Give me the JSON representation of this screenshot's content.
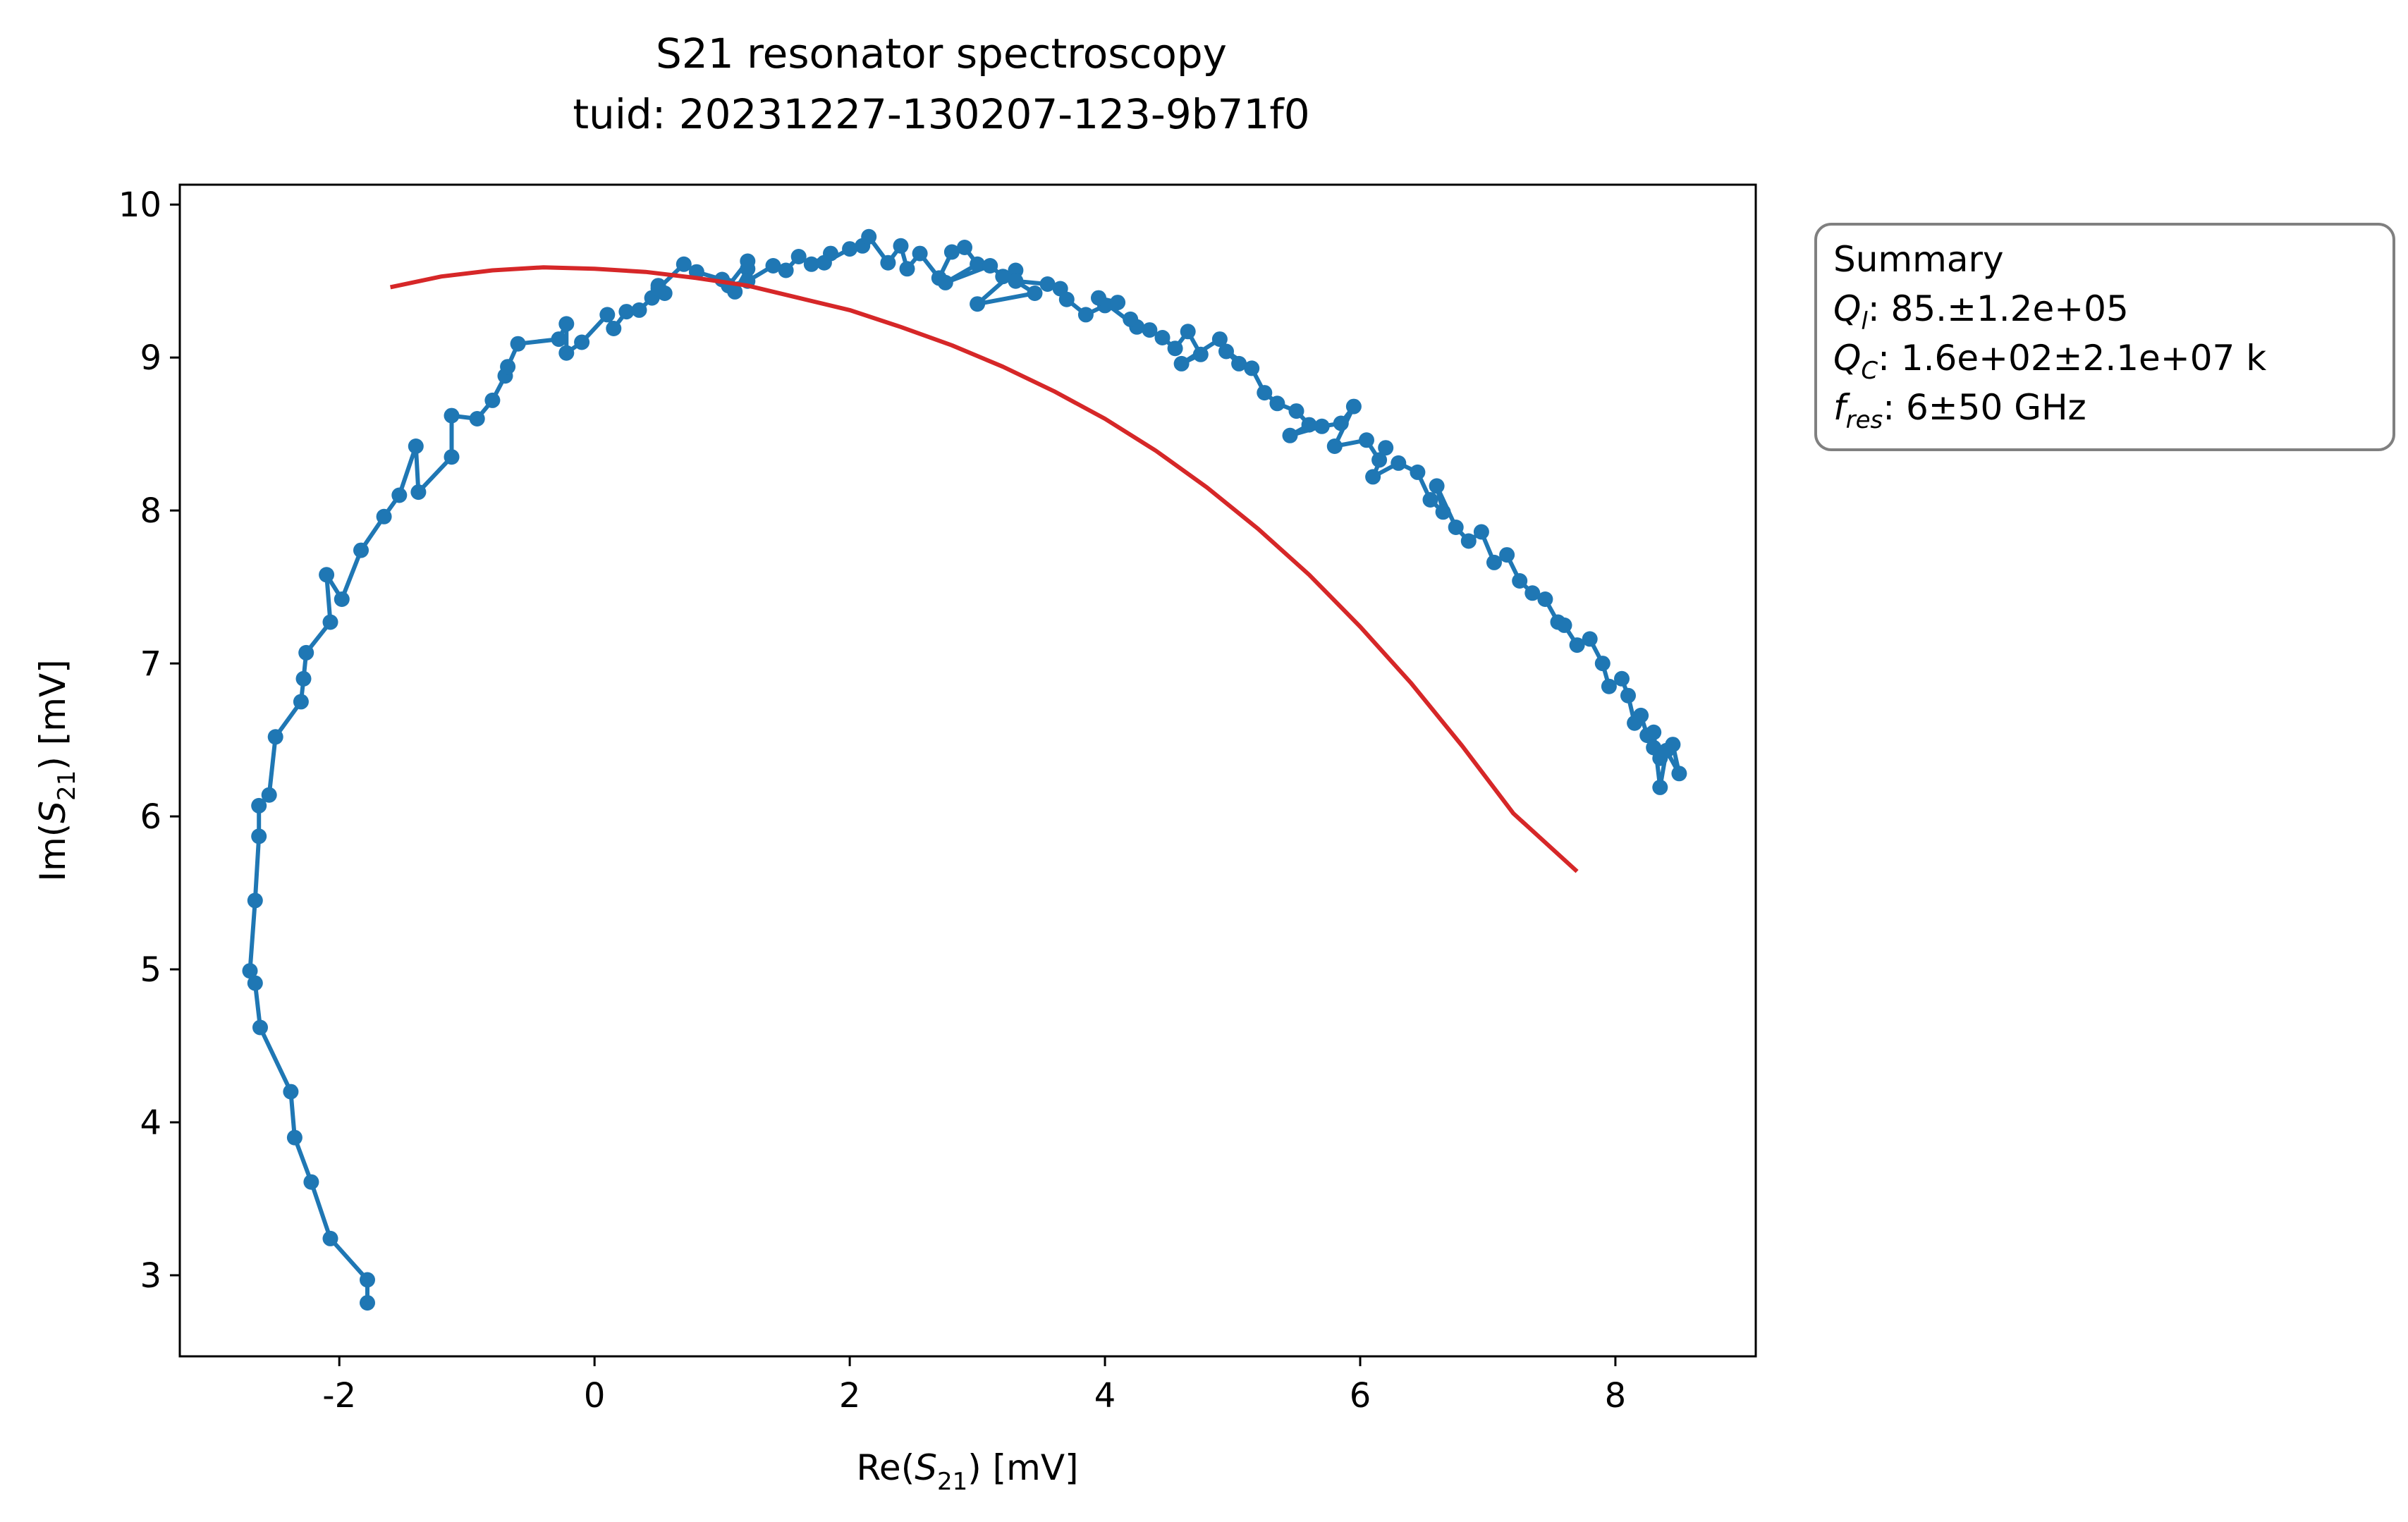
{
  "chart_data": {
    "type": "scatter",
    "title": "S21 resonator spectroscopy",
    "subtitle": "tuid: 20231227-130207-123-9b71f0",
    "xlabel": "Re(S21) [mV]",
    "ylabel": "Im(S21) [mV]",
    "xlim": [
      -3.25,
      9.1
    ],
    "ylim": [
      2.47,
      10.13
    ],
    "xticks": [
      -2,
      0,
      2,
      4,
      6,
      8
    ],
    "yticks": [
      3,
      4,
      5,
      6,
      7,
      8,
      9,
      10
    ],
    "grid": false,
    "legend": null,
    "series": [
      {
        "kind": "data",
        "color": "#1f77b4",
        "markers": true,
        "x": [
          -1.78,
          -1.78,
          -2.07,
          -2.22,
          -2.35,
          -2.38,
          -2.62,
          -2.66,
          -2.7,
          -2.66,
          -2.63,
          -2.63,
          -2.55,
          -2.5,
          -2.3,
          -2.28,
          -2.26,
          -2.07,
          -2.1,
          -1.98,
          -1.83,
          -1.65,
          -1.53,
          -1.4,
          -1.38,
          -1.12,
          -1.12,
          -0.92,
          -0.8,
          -0.7,
          -0.68,
          -0.6,
          -0.28,
          -0.22,
          -0.22,
          -0.1,
          0.1,
          0.15,
          0.25,
          0.35,
          0.45,
          0.5,
          0.55,
          0.5,
          0.7,
          0.8,
          1.0,
          1.1,
          1.2,
          1.2,
          1.05,
          1.2,
          1.4,
          1.5,
          1.6,
          1.7,
          1.85,
          1.8,
          2.0,
          2.1,
          2.15,
          2.3,
          2.4,
          2.45,
          2.55,
          2.7,
          2.8,
          2.9,
          3.0,
          2.75,
          3.1,
          3.2,
          3.3,
          3.0,
          3.45,
          3.3,
          3.55,
          3.65,
          3.7,
          3.85,
          4.0,
          4.1,
          3.95,
          4.25,
          4.2,
          4.35,
          4.45,
          4.55,
          4.65,
          4.75,
          4.6,
          4.9,
          5.05,
          4.95,
          5.15,
          5.25,
          5.35,
          5.5,
          5.6,
          5.45,
          5.7,
          5.85,
          5.95,
          5.8,
          6.05,
          6.15,
          6.2,
          6.1,
          6.3,
          6.45,
          6.55,
          6.65,
          6.6,
          6.75,
          6.85,
          6.95,
          7.05,
          7.15,
          7.25,
          7.35,
          7.45,
          7.55,
          7.6,
          7.7,
          7.8,
          7.9,
          7.95,
          8.05,
          8.1,
          8.15,
          8.2,
          8.25,
          8.3,
          8.35,
          8.45,
          8.5,
          8.4,
          8.35,
          8.3
        ],
        "y": [
          2.82,
          2.97,
          3.24,
          3.61,
          3.9,
          4.2,
          4.62,
          4.91,
          4.99,
          5.45,
          5.87,
          6.07,
          6.14,
          6.52,
          6.75,
          6.9,
          7.07,
          7.27,
          7.58,
          7.42,
          7.74,
          7.96,
          8.1,
          8.42,
          8.12,
          8.35,
          8.62,
          8.6,
          8.72,
          8.88,
          8.94,
          9.09,
          9.12,
          9.22,
          9.03,
          9.1,
          9.28,
          9.19,
          9.3,
          9.31,
          9.39,
          9.47,
          9.42,
          9.45,
          9.61,
          9.56,
          9.51,
          9.43,
          9.58,
          9.63,
          9.47,
          9.5,
          9.6,
          9.57,
          9.66,
          9.61,
          9.68,
          9.62,
          9.71,
          9.73,
          9.79,
          9.62,
          9.73,
          9.58,
          9.68,
          9.52,
          9.69,
          9.72,
          9.61,
          9.49,
          9.6,
          9.53,
          9.57,
          9.35,
          9.42,
          9.5,
          9.48,
          9.45,
          9.38,
          9.28,
          9.34,
          9.36,
          9.39,
          9.2,
          9.25,
          9.18,
          9.13,
          9.06,
          9.17,
          9.02,
          8.96,
          9.12,
          8.96,
          9.04,
          8.93,
          8.77,
          8.7,
          8.65,
          8.56,
          8.49,
          8.55,
          8.57,
          8.68,
          8.42,
          8.46,
          8.33,
          8.41,
          8.22,
          8.31,
          8.25,
          8.07,
          7.99,
          8.16,
          7.89,
          7.8,
          7.86,
          7.66,
          7.71,
          7.54,
          7.46,
          7.42,
          7.27,
          7.25,
          7.12,
          7.16,
          7.0,
          6.85,
          6.9,
          6.79,
          6.61,
          6.66,
          6.53,
          6.45,
          6.38,
          6.47,
          6.28,
          6.43,
          6.19,
          6.55
        ]
      },
      {
        "kind": "fit",
        "color": "#d62728",
        "markers": false,
        "x": [
          -1.6,
          -1.2,
          -0.8,
          -0.4,
          0.0,
          0.4,
          0.8,
          1.2,
          1.6,
          2.0,
          2.4,
          2.8,
          3.2,
          3.6,
          4.0,
          4.4,
          4.8,
          5.2,
          5.6,
          6.0,
          6.4,
          6.8,
          7.2,
          7.7
        ],
        "y": [
          9.46,
          9.53,
          9.57,
          9.59,
          9.58,
          9.56,
          9.52,
          9.47,
          9.39,
          9.31,
          9.2,
          9.08,
          8.94,
          8.78,
          8.6,
          8.39,
          8.15,
          7.88,
          7.58,
          7.24,
          6.87,
          6.46,
          6.02,
          5.64
        ]
      }
    ]
  },
  "summary": {
    "heading": "Summary",
    "lines": [
      {
        "sym": "Q",
        "sub": "l",
        "value": ": 85.±1.2e+05"
      },
      {
        "sym": "Q",
        "sub": "C",
        "value": ": 1.6e+02±2.1e+07 k"
      },
      {
        "sym": "f",
        "sub": "res",
        "value": ": 6±50 GHz"
      }
    ]
  }
}
